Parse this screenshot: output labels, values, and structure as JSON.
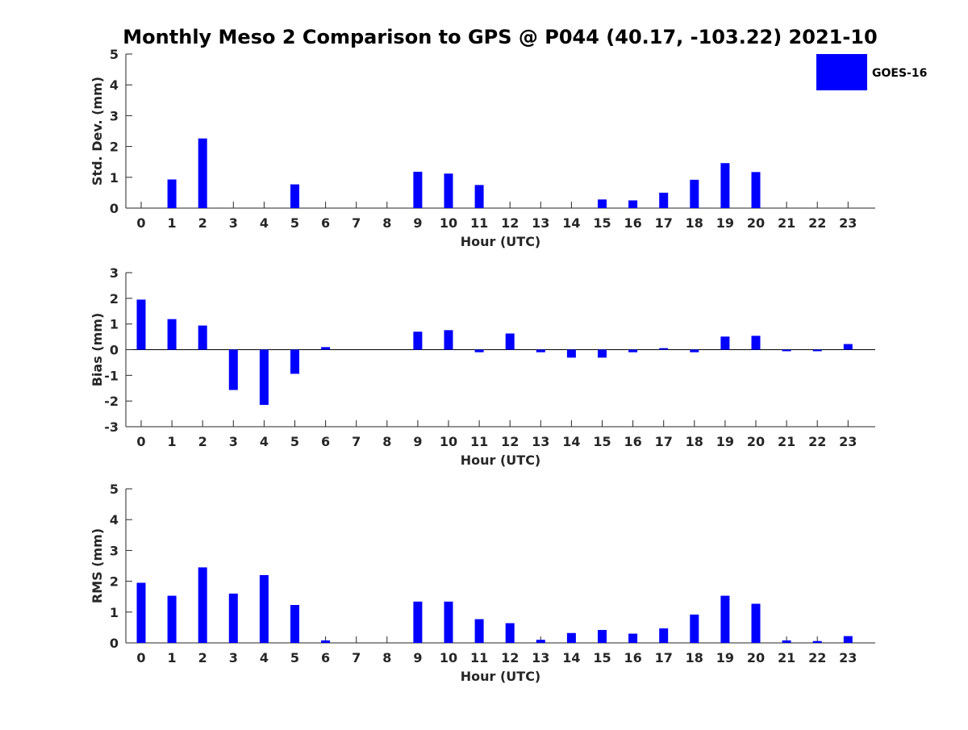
{
  "title": "Monthly Meso 2 Comparison to GPS @ P044 (40.17, -103.22) 2021-10",
  "legend": {
    "label": "GOES-16",
    "color": "#0000ff",
    "placement": "top-right"
  },
  "chart_data": [
    {
      "type": "bar",
      "ylabel": "Std. Dev. (mm)",
      "xlabel": "Hour (UTC)",
      "ylim": [
        0,
        5
      ],
      "yticks": [
        "0",
        "1",
        "2",
        "3",
        "4",
        "5"
      ],
      "categories": [
        "0",
        "1",
        "2",
        "3",
        "4",
        "5",
        "6",
        "7",
        "8",
        "9",
        "10",
        "11",
        "12",
        "13",
        "14",
        "15",
        "16",
        "17",
        "18",
        "19",
        "20",
        "21",
        "22",
        "23"
      ],
      "series": [
        {
          "name": "GOES-16",
          "values": [
            0,
            0.93,
            2.26,
            0,
            0,
            0.77,
            0,
            0,
            0,
            1.18,
            1.12,
            0.75,
            0,
            0,
            0,
            0.28,
            0.25,
            0.5,
            0.92,
            1.46,
            1.17,
            0,
            0,
            0
          ]
        }
      ]
    },
    {
      "type": "bar",
      "ylabel": "Bias (mm)",
      "xlabel": "Hour (UTC)",
      "ylim": [
        -3,
        3
      ],
      "yticks": [
        "-3",
        "-2",
        "-1",
        "0",
        "1",
        "2",
        "3"
      ],
      "categories": [
        "0",
        "1",
        "2",
        "3",
        "4",
        "5",
        "6",
        "7",
        "8",
        "9",
        "10",
        "11",
        "12",
        "13",
        "14",
        "15",
        "16",
        "17",
        "18",
        "19",
        "20",
        "21",
        "22",
        "23"
      ],
      "series": [
        {
          "name": "GOES-16",
          "values": [
            1.95,
            1.19,
            0.94,
            -1.57,
            -2.15,
            -0.94,
            0.1,
            0,
            0,
            0.7,
            0.76,
            -0.1,
            0.63,
            -0.1,
            -0.31,
            -0.31,
            -0.1,
            0.06,
            -0.1,
            0.51,
            0.54,
            -0.06,
            -0.06,
            0.22
          ]
        }
      ]
    },
    {
      "type": "bar",
      "ylabel": "RMS (mm)",
      "xlabel": "Hour (UTC)",
      "ylim": [
        0,
        5
      ],
      "yticks": [
        "0",
        "1",
        "2",
        "3",
        "4",
        "5"
      ],
      "categories": [
        "0",
        "1",
        "2",
        "3",
        "4",
        "5",
        "6",
        "7",
        "8",
        "9",
        "10",
        "11",
        "12",
        "13",
        "14",
        "15",
        "16",
        "17",
        "18",
        "19",
        "20",
        "21",
        "22",
        "23"
      ],
      "series": [
        {
          "name": "GOES-16",
          "values": [
            1.95,
            1.53,
            2.45,
            1.6,
            2.2,
            1.23,
            0.08,
            0,
            0,
            1.34,
            1.34,
            0.77,
            0.64,
            0.1,
            0.32,
            0.42,
            0.3,
            0.47,
            0.92,
            1.53,
            1.27,
            0.08,
            0.06,
            0.22
          ]
        }
      ]
    }
  ]
}
